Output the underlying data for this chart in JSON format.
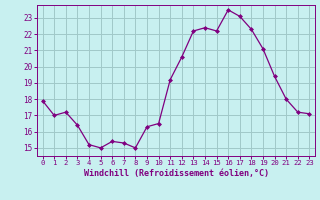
{
  "x": [
    0,
    1,
    2,
    3,
    4,
    5,
    6,
    7,
    8,
    9,
    10,
    11,
    12,
    13,
    14,
    15,
    16,
    17,
    18,
    19,
    20,
    21,
    22,
    23
  ],
  "y": [
    17.9,
    17.0,
    17.2,
    16.4,
    15.2,
    15.0,
    15.4,
    15.3,
    15.0,
    16.3,
    16.5,
    19.2,
    20.6,
    22.2,
    22.4,
    22.2,
    23.5,
    23.1,
    22.3,
    21.1,
    19.4,
    18.0,
    17.2,
    17.1
  ],
  "line_color": "#800080",
  "marker": "D",
  "marker_size": 2.0,
  "bg_color": "#c8f0f0",
  "grid_color": "#a0c8c8",
  "xlabel": "Windchill (Refroidissement éolien,°C)",
  "xlabel_color": "#800080",
  "tick_color": "#800080",
  "ylim": [
    14.5,
    23.8
  ],
  "xlim": [
    -0.5,
    23.5
  ],
  "yticks": [
    15,
    16,
    17,
    18,
    19,
    20,
    21,
    22,
    23
  ],
  "xticks": [
    0,
    1,
    2,
    3,
    4,
    5,
    6,
    7,
    8,
    9,
    10,
    11,
    12,
    13,
    14,
    15,
    16,
    17,
    18,
    19,
    20,
    21,
    22,
    23
  ]
}
